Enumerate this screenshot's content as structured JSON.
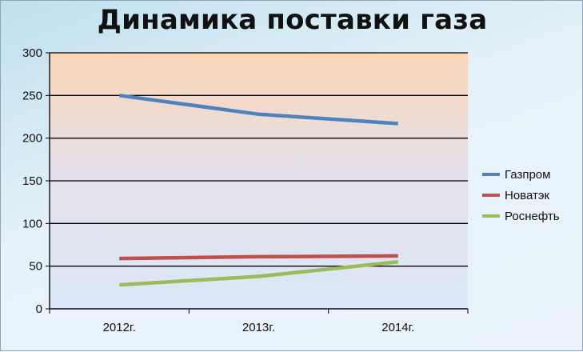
{
  "chart_data": {
    "type": "line",
    "title": "Динамика поставки газа",
    "categories": [
      "2012г.",
      "2013г.",
      "2014г."
    ],
    "series": [
      {
        "name": "Газпром",
        "values": [
          250,
          228,
          217
        ],
        "color": "#4f81bd"
      },
      {
        "name": "Новатэк",
        "values": [
          59,
          61,
          62
        ],
        "color": "#c0504d"
      },
      {
        "name": "Роснефть",
        "values": [
          28,
          38,
          55
        ],
        "color": "#9bbb59"
      }
    ],
    "ylim": [
      0,
      300
    ],
    "yticks": [
      "0",
      "50",
      "100",
      "150",
      "200",
      "250",
      "300"
    ],
    "grid": true,
    "legend": "right"
  }
}
